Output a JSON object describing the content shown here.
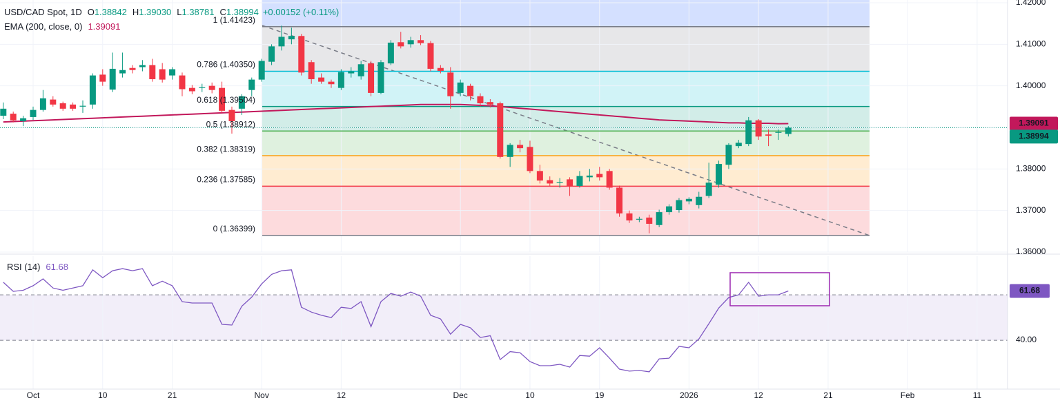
{
  "chart_data": [
    {
      "type": "candlestick",
      "title": "USD/CAD Spot, 1D",
      "ohlc_legend": [
        {
          "prefix": "O",
          "label": "1.38842"
        },
        {
          "prefix": "H",
          "label": "1.39030"
        },
        {
          "prefix": "L",
          "label": "1.38781"
        },
        {
          "prefix": "C",
          "label": "1.38994"
        }
      ],
      "change_label": "+0.00152 (+0.11%)",
      "up_color": "#089981",
      "down_color": "#f23645",
      "open": [
        1.3928,
        1.3933,
        1.3915,
        1.3925,
        1.3942,
        1.3967,
        1.3958,
        1.3955,
        1.395,
        1.3955,
        1.4027,
        1.3991,
        1.403,
        1.4043,
        1.4045,
        1.405,
        1.404,
        1.4025,
        1.4025,
        1.3995,
        1.3995,
        1.4,
        1.3995,
        1.3942,
        1.3945,
        1.399,
        1.4015,
        1.4058,
        1.4095,
        1.4112,
        1.412,
        1.4057,
        1.402,
        1.401,
        1.3995,
        1.403,
        1.4023,
        1.4054,
        1.3983,
        1.4054,
        1.4105,
        1.41,
        1.411,
        1.4103,
        1.4043,
        1.4032,
        1.3983,
        1.4,
        1.3975,
        1.3961,
        1.3958,
        1.3829,
        1.3858,
        1.3853,
        1.3795,
        1.3773,
        1.3766,
        1.3775,
        1.3759,
        1.378,
        1.3788,
        1.3795,
        1.3755,
        1.3693,
        1.3678,
        1.3683,
        1.3665,
        1.3696,
        1.3701,
        1.3722,
        1.3713,
        1.3735,
        1.3762,
        1.381,
        1.3855,
        1.386,
        1.3917,
        1.3883,
        1.3887,
        1.38842
      ],
      "high": [
        1.396,
        1.3938,
        1.3928,
        1.395,
        1.399,
        1.3975,
        1.3962,
        1.396,
        1.3965,
        1.403,
        1.404,
        1.408,
        1.408,
        1.405,
        1.4062,
        1.4065,
        1.4055,
        1.4045,
        1.4032,
        1.4002,
        1.4005,
        1.4008,
        1.401,
        1.395,
        1.398,
        1.402,
        1.4065,
        1.41,
        1.4145,
        1.414,
        1.4125,
        1.4062,
        1.403,
        1.4015,
        1.404,
        1.4045,
        1.406,
        1.406,
        1.4062,
        1.411,
        1.413,
        1.4118,
        1.4122,
        1.4108,
        1.405,
        1.4045,
        1.4015,
        1.4005,
        1.3982,
        1.3968,
        1.3962,
        1.3862,
        1.387,
        1.3868,
        1.381,
        1.3782,
        1.3778,
        1.378,
        1.3795,
        1.38,
        1.3805,
        1.38,
        1.376,
        1.37,
        1.3685,
        1.369,
        1.3702,
        1.3715,
        1.373,
        1.3732,
        1.3745,
        1.3815,
        1.382,
        1.3862,
        1.387,
        1.3925,
        1.392,
        1.3895,
        1.3895,
        1.3903
      ],
      "low": [
        1.392,
        1.3912,
        1.3903,
        1.3918,
        1.3938,
        1.395,
        1.394,
        1.394,
        1.3935,
        1.3945,
        1.4,
        1.3985,
        1.402,
        1.403,
        1.4035,
        1.401,
        1.4008,
        1.4015,
        1.3975,
        1.398,
        1.3985,
        1.3982,
        1.3935,
        1.3885,
        1.393,
        1.3975,
        1.401,
        1.405,
        1.4085,
        1.41,
        1.4025,
        1.4005,
        1.4005,
        1.3995,
        1.399,
        1.402,
        1.4015,
        1.3975,
        1.398,
        1.405,
        1.409,
        1.4092,
        1.4098,
        1.4035,
        1.403,
        1.3945,
        1.3975,
        1.3965,
        1.395,
        1.3948,
        1.3825,
        1.3805,
        1.384,
        1.379,
        1.3765,
        1.3758,
        1.3755,
        1.3735,
        1.3755,
        1.377,
        1.3772,
        1.375,
        1.3685,
        1.367,
        1.3672,
        1.3645,
        1.366,
        1.369,
        1.3695,
        1.3715,
        1.3705,
        1.373,
        1.3755,
        1.38,
        1.385,
        1.3855,
        1.387,
        1.3855,
        1.387,
        1.38781
      ],
      "close": [
        1.3945,
        1.3917,
        1.3922,
        1.3942,
        1.397,
        1.3955,
        1.3945,
        1.3945,
        1.3952,
        1.4025,
        1.401,
        1.4041,
        1.4038,
        1.4038,
        1.405,
        1.4016,
        1.4015,
        1.404,
        1.3992,
        1.3987,
        1.3997,
        1.399,
        1.394,
        1.3915,
        1.3975,
        1.4015,
        1.406,
        1.4095,
        1.4118,
        1.412,
        1.4032,
        1.4016,
        1.401,
        1.4004,
        1.4033,
        1.4035,
        1.4052,
        1.3983,
        1.4057,
        1.4104,
        1.4095,
        1.411,
        1.4103,
        1.4041,
        1.4036,
        1.3975,
        1.4008,
        1.3975,
        1.3958,
        1.3955,
        1.3829,
        1.3858,
        1.385,
        1.3795,
        1.3772,
        1.3765,
        1.3768,
        1.3759,
        1.3783,
        1.3784,
        1.378,
        1.3755,
        1.3693,
        1.3676,
        1.368,
        1.3668,
        1.3696,
        1.371,
        1.3725,
        1.3728,
        1.3733,
        1.3767,
        1.3812,
        1.3858,
        1.3863,
        1.3917,
        1.3878,
        1.388,
        1.3889,
        1.38994
      ],
      "overlays": [
        {
          "name": "EMA (200, close, 0)",
          "color": "#c2185b",
          "values": [
            1.3913,
            1.3914,
            1.3915,
            1.3916,
            1.3917,
            1.3918,
            1.3919,
            1.392,
            1.3921,
            1.3922,
            1.3923,
            1.3924,
            1.3925,
            1.3926,
            1.3927,
            1.3928,
            1.3929,
            1.393,
            1.3931,
            1.3932,
            1.3933,
            1.3934,
            1.3935,
            1.3936,
            1.3937,
            1.3938,
            1.3939,
            1.394,
            1.3941,
            1.3942,
            1.3943,
            1.3944,
            1.3945,
            1.3946,
            1.3947,
            1.3948,
            1.3949,
            1.395,
            1.3951,
            1.3952,
            1.3953,
            1.3954,
            1.3955,
            1.3955,
            1.3955,
            1.3955,
            1.3955,
            1.3954,
            1.3953,
            1.3952,
            1.395,
            1.3948,
            1.3946,
            1.3944,
            1.3942,
            1.394,
            1.3938,
            1.3936,
            1.3934,
            1.3932,
            1.393,
            1.3928,
            1.3926,
            1.3924,
            1.3922,
            1.392,
            1.3918,
            1.3917,
            1.3916,
            1.3915,
            1.3914,
            1.3913,
            1.3912,
            1.3911,
            1.3911,
            1.391,
            1.391,
            1.391,
            1.3909,
            1.39091
          ]
        }
      ],
      "fib_levels": [
        {
          "value": 1.41423,
          "label": "1 (1.41423)",
          "color": "#787b86"
        },
        {
          "value": 1.4035,
          "label": "0.786 (1.40350)",
          "color": "#00bcd4"
        },
        {
          "value": 1.39504,
          "label": "0.618 (1.39504)",
          "color": "#089981"
        },
        {
          "value": 1.38912,
          "label": "0.5 (1.38912)",
          "color": "#4caf50"
        },
        {
          "value": 1.38319,
          "label": "0.382 (1.38319)",
          "color": "#ff9800"
        },
        {
          "value": 1.37585,
          "label": "0.236 (1.37585)",
          "color": "#f23645"
        },
        {
          "value": 1.36399,
          "label": "0 (1.36399)",
          "color": "#787b86"
        }
      ],
      "ylim": [
        1.36,
        1.42066
      ],
      "yticks": [
        {
          "value": 1.42,
          "label": "1.42000"
        },
        {
          "value": 1.41,
          "label": "1.41000"
        },
        {
          "value": 1.4,
          "label": "1.40000"
        },
        {
          "value": 1.39,
          "label": "1.39000"
        },
        {
          "value": 1.38,
          "label": "1.38000"
        },
        {
          "value": 1.37,
          "label": "1.37000"
        },
        {
          "value": 1.36,
          "label": "1.36000"
        }
      ],
      "xlim": [
        -0.333,
        101.06
      ],
      "xticks": [
        {
          "value": 3,
          "label": "Oct"
        },
        {
          "value": 10,
          "label": "10"
        },
        {
          "value": 17,
          "label": "21"
        },
        {
          "value": 26,
          "label": "Nov"
        },
        {
          "value": 34,
          "label": "12"
        },
        {
          "value": 46,
          "label": "Dec"
        },
        {
          "value": 53,
          "label": "10"
        },
        {
          "value": 60,
          "label": "19"
        },
        {
          "value": 69,
          "label": "2026"
        },
        {
          "value": 76,
          "label": "12"
        },
        {
          "value": 83,
          "label": "21"
        },
        {
          "value": 91,
          "label": "Feb"
        },
        {
          "value": 98,
          "label": "11"
        }
      ],
      "grid": true
    },
    {
      "type": "line",
      "title": "RSI (14)",
      "series": [
        {
          "name": "RSI (14)",
          "color": "#7e57c2",
          "values": [
            65.5,
            61.5,
            62,
            64,
            67,
            63,
            62,
            63,
            64,
            71,
            67.5,
            70.6,
            71.5,
            70.6,
            71.5,
            64,
            66,
            64,
            57,
            56.4,
            56.4,
            56.4,
            47,
            46.7,
            55,
            59,
            64.8,
            69,
            70.6,
            71,
            54.5,
            52.4,
            51,
            50,
            54.5,
            54,
            57,
            46,
            57,
            60.6,
            59.4,
            61.2,
            59.4,
            51,
            49.4,
            42.7,
            47,
            45.5,
            41.2,
            42,
            31.5,
            35,
            34.5,
            30.6,
            28.8,
            28.8,
            29.4,
            28.2,
            33.3,
            33,
            36.7,
            32.1,
            27.3,
            26.4,
            26.7,
            26.1,
            31.8,
            32.1,
            37.3,
            36.7,
            40.6,
            47.3,
            54.2,
            58.8,
            60,
            65.5,
            59.4,
            60,
            60,
            61.68
          ]
        }
      ],
      "band": [
        40,
        60
      ],
      "ylim": [
        18.5,
        77
      ],
      "yticks": [
        {
          "value": 40,
          "label": "40.00"
        }
      ]
    }
  ]
}
